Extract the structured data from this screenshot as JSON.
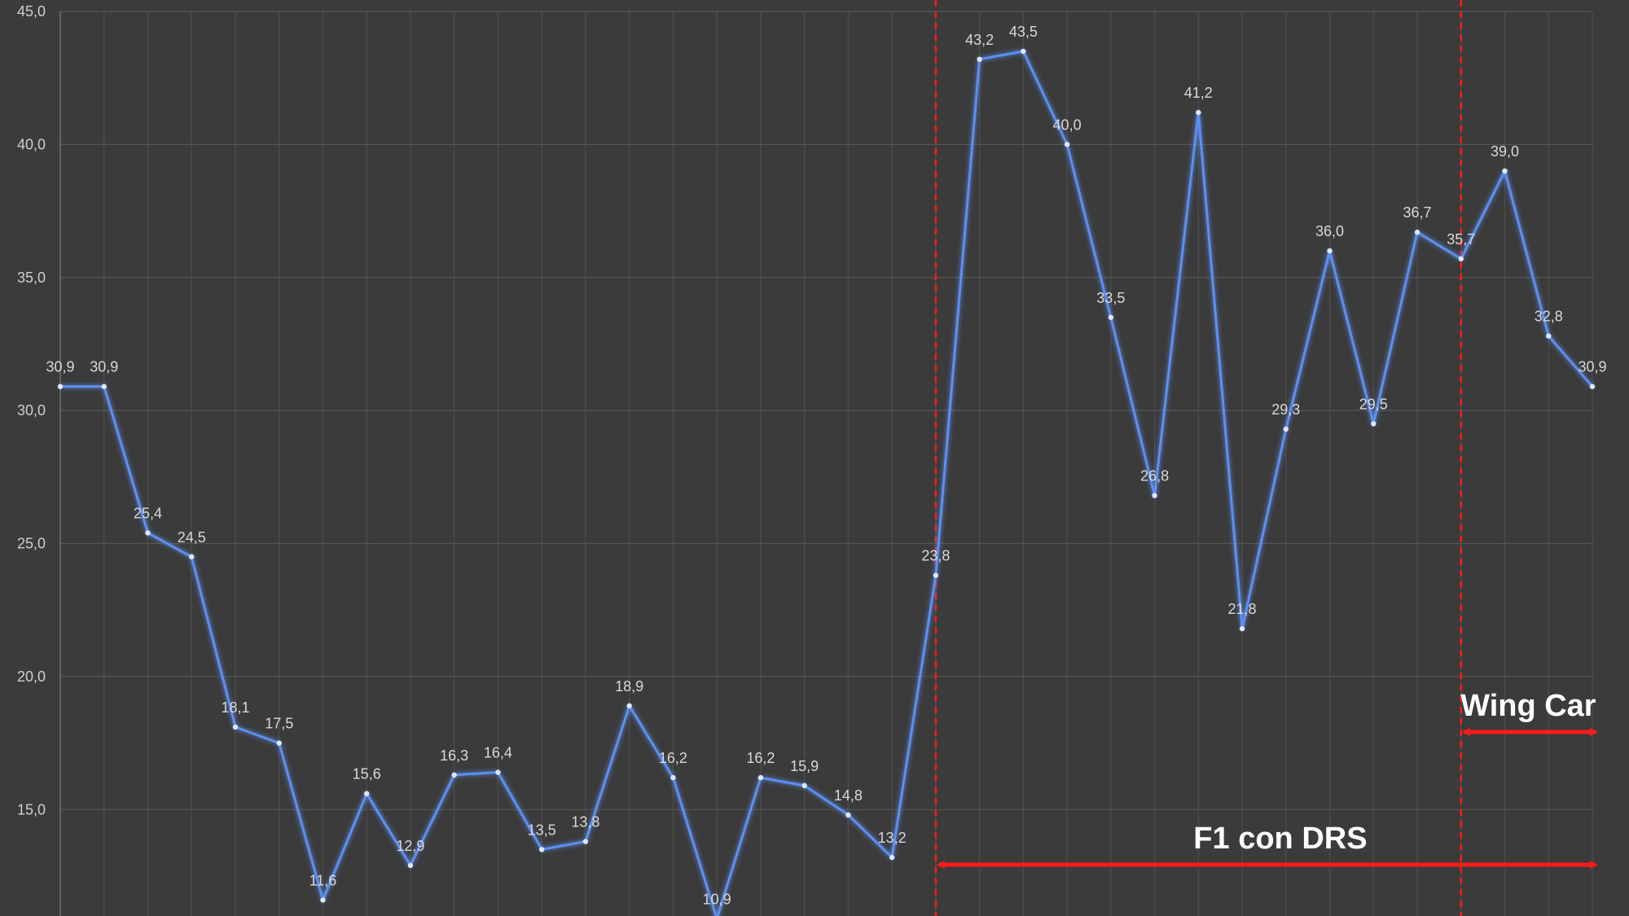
{
  "chart_data": {
    "type": "line",
    "ylim": [
      11,
      45
    ],
    "yticks": [
      "15,0",
      "20,0",
      "25,0",
      "30,0",
      "35,0",
      "40,0",
      "45,0"
    ],
    "ytick_values": [
      15,
      20,
      25,
      30,
      35,
      40,
      45
    ],
    "grid": true,
    "x": [
      1,
      2,
      3,
      4,
      5,
      6,
      7,
      8,
      9,
      10,
      11,
      12,
      13,
      14,
      15,
      16,
      17,
      18,
      19,
      20,
      21,
      22,
      23,
      24,
      25,
      26,
      27,
      28,
      29,
      30,
      31,
      32,
      33,
      34,
      35,
      36
    ],
    "values": [
      30.9,
      30.9,
      25.4,
      24.5,
      18.1,
      17.5,
      11.6,
      15.6,
      12.9,
      16.3,
      16.4,
      13.5,
      13.8,
      18.9,
      16.2,
      10.9,
      16.2,
      15.9,
      14.8,
      13.2,
      23.8,
      43.2,
      43.5,
      40.0,
      33.5,
      26.8,
      41.2,
      21.8,
      29.3,
      36.0,
      29.5,
      36.7,
      35.7,
      39.0,
      32.8,
      30.9
    ],
    "labels": [
      "30,9",
      "30,9",
      "25,4",
      "24,5",
      "18,1",
      "17,5",
      "11,6",
      "15,6",
      "12,9",
      "16,3",
      "16,4",
      "13,5",
      "13,8",
      "18,9",
      "16,2",
      "10,9",
      "16,2",
      "15,9",
      "14,8",
      "13,2",
      "23,8",
      "43,2",
      "43,5",
      "40,0",
      "33,5",
      "26,8",
      "41,2",
      "21,8",
      "29,3",
      "36,0",
      "29,5",
      "36,7",
      "35,7",
      "39,0",
      "32,8",
      "30,9"
    ],
    "series_color": "#5b8ff0",
    "annotations": [
      {
        "text": "F1 con DRS",
        "start_x": 21,
        "end_x": 36,
        "color": "#ff1a1a"
      },
      {
        "text": "Wing Car",
        "start_x": 33,
        "end_x": 36,
        "color": "#ff1a1a"
      }
    ]
  }
}
